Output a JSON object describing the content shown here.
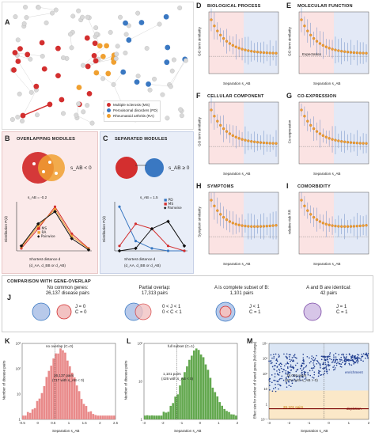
{
  "panelA": {
    "letter": "A",
    "legend": [
      {
        "label": "Multiple sclerosis (MS)",
        "color": "#d32f2f"
      },
      {
        "label": "Peroxisomal disorders (PD)",
        "color": "#3a78c2"
      },
      {
        "label": "Rheumatoid arthritis (RA)",
        "color": "#f0a030"
      }
    ]
  },
  "panelB": {
    "letter": "B",
    "title": "Overlapping Modules",
    "condition": "s_AB < 0",
    "annotation": "s_AB = -0.2",
    "ylabel": "Distribution P(d)",
    "xlabel": "Shortest distance d",
    "sublabel": "(d_AA, d_BB or d_AB)",
    "legend": [
      "MS",
      "RA",
      "Pairwise"
    ]
  },
  "panelC": {
    "letter": "C",
    "title": "Separated Modules",
    "condition": "s_AB ≥ 0",
    "annotation": "s_AB = 1.5",
    "ylabel": "Distribution P(d)",
    "xlabel": "Shortest distance d",
    "sublabel": "(d_AA, d_BB or d_AB)",
    "legend": [
      "PD",
      "MS",
      "Pairwise"
    ]
  },
  "smallPanels": [
    {
      "letter": "D",
      "title": "Biological Process",
      "ylabel": "GO term similarity",
      "xlabel": "Separation s_AB"
    },
    {
      "letter": "E",
      "title": "Molecular Function",
      "ylabel": "GO term similarity",
      "xlabel": "Separation s_AB",
      "note": "Expectation"
    },
    {
      "letter": "F",
      "title": "Cellular Component",
      "ylabel": "GO term similarity",
      "xlabel": "Separation s_AB"
    },
    {
      "letter": "G",
      "title": "Co-Expression",
      "ylabel": "Co-expression",
      "xlabel": "Separation s_AB"
    },
    {
      "letter": "H",
      "title": "Symptoms",
      "ylabel": "Symptom similarity",
      "xlabel": "Separation s_AB"
    },
    {
      "letter": "I",
      "title": "Comorbidity",
      "ylabel": "relative risk RR",
      "xlabel": "Separation s_AB"
    }
  ],
  "comparison": {
    "header": "Comparison with Gene-Overlap",
    "letter": "J",
    "cells": [
      {
        "line1": "No common genes:",
        "line2": "26,137 disease pairs",
        "c1": "J = 0",
        "c2": "C = 0"
      },
      {
        "line1": "Partial overlap:",
        "line2": "17,313 pairs",
        "c1": "0 < J < 1",
        "c2": "0 < C < 1"
      },
      {
        "line1": "A is complete subset of B:",
        "line2": "1,101 pairs",
        "c1": "J < 1",
        "c2": "C = 1"
      },
      {
        "line1": "A and B are identical:",
        "line2": "42 pairs",
        "c1": "J = 1",
        "c2": "C = 1"
      }
    ]
  },
  "panelK": {
    "letter": "K",
    "legend": "no overlap (C=0)",
    "note1": "26,137 pairs",
    "note2": "(717 with s_AB < 0)",
    "ylabel": "Number of disease pairs",
    "xlabel": "Separation s_AB",
    "xticks": [
      "-0.5",
      "0",
      "0.5",
      "1",
      "1.5",
      "2",
      "2.5"
    ],
    "yticks": [
      "1",
      "10",
      "10²",
      "10³"
    ]
  },
  "panelL": {
    "letter": "L",
    "legend": "full subset (C=1)",
    "note1": "1,101 pairs",
    "note2": "(426 with s_AB < 0)",
    "ylabel": "Number of disease pairs",
    "xlabel": "Separation s_AB",
    "xticks": [
      "-3",
      "-2",
      "-1",
      "0",
      "1",
      "2"
    ],
    "yticks": [
      "1",
      "10",
      "10²"
    ]
  },
  "panelM": {
    "letter": "M",
    "ylabel": "Effect size for number of shared genes (fold change)",
    "xlabel": "Separation s_AB",
    "note1": "18,036 pairs",
    "note2": "(87% with s_AB > 0)",
    "note3": "26,101 pairs",
    "enrich": "enrichment",
    "deplete": "depletion",
    "xticks": [
      "-3",
      "-2",
      "-1",
      "0",
      "1",
      "2"
    ],
    "yticks": [
      "10⁻¹",
      "1",
      "10",
      "10²",
      "10³",
      "10⁴"
    ]
  }
}
